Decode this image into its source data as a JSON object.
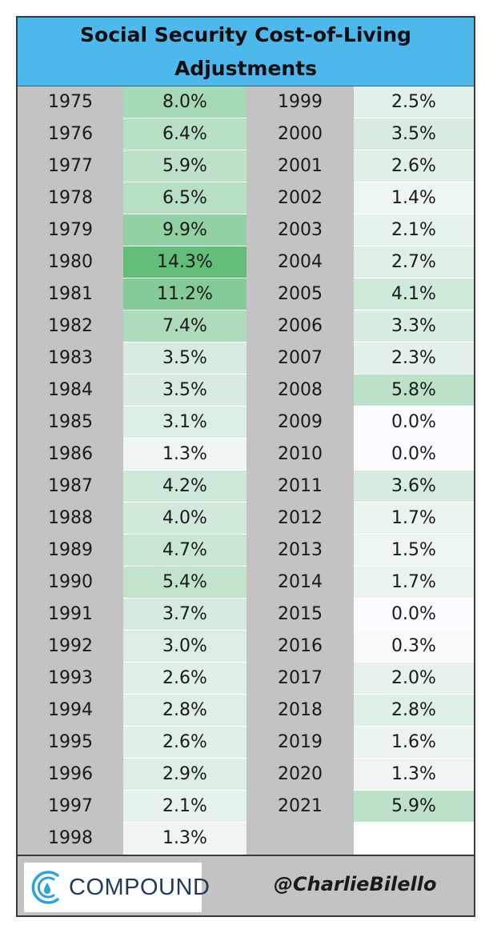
{
  "chart_data": {
    "type": "table",
    "title": "Social Security Cost-of-Living Adjustments",
    "rows": [
      {
        "year": "1975",
        "value": "8.0%",
        "pct": 8.0
      },
      {
        "year": "1976",
        "value": "6.4%",
        "pct": 6.4
      },
      {
        "year": "1977",
        "value": "5.9%",
        "pct": 5.9
      },
      {
        "year": "1978",
        "value": "6.5%",
        "pct": 6.5
      },
      {
        "year": "1979",
        "value": "9.9%",
        "pct": 9.9
      },
      {
        "year": "1980",
        "value": "14.3%",
        "pct": 14.3
      },
      {
        "year": "1981",
        "value": "11.2%",
        "pct": 11.2
      },
      {
        "year": "1982",
        "value": "7.4%",
        "pct": 7.4
      },
      {
        "year": "1983",
        "value": "3.5%",
        "pct": 3.5
      },
      {
        "year": "1984",
        "value": "3.5%",
        "pct": 3.5
      },
      {
        "year": "1985",
        "value": "3.1%",
        "pct": 3.1
      },
      {
        "year": "1986",
        "value": "1.3%",
        "pct": 1.3
      },
      {
        "year": "1987",
        "value": "4.2%",
        "pct": 4.2
      },
      {
        "year": "1988",
        "value": "4.0%",
        "pct": 4.0
      },
      {
        "year": "1989",
        "value": "4.7%",
        "pct": 4.7
      },
      {
        "year": "1990",
        "value": "5.4%",
        "pct": 5.4
      },
      {
        "year": "1991",
        "value": "3.7%",
        "pct": 3.7
      },
      {
        "year": "1992",
        "value": "3.0%",
        "pct": 3.0
      },
      {
        "year": "1993",
        "value": "2.6%",
        "pct": 2.6
      },
      {
        "year": "1994",
        "value": "2.8%",
        "pct": 2.8
      },
      {
        "year": "1995",
        "value": "2.6%",
        "pct": 2.6
      },
      {
        "year": "1996",
        "value": "2.9%",
        "pct": 2.9
      },
      {
        "year": "1997",
        "value": "2.1%",
        "pct": 2.1
      },
      {
        "year": "1998",
        "value": "1.3%",
        "pct": 1.3
      },
      {
        "year": "1999",
        "value": "2.5%",
        "pct": 2.5
      },
      {
        "year": "2000",
        "value": "3.5%",
        "pct": 3.5
      },
      {
        "year": "2001",
        "value": "2.6%",
        "pct": 2.6
      },
      {
        "year": "2002",
        "value": "1.4%",
        "pct": 1.4
      },
      {
        "year": "2003",
        "value": "2.1%",
        "pct": 2.1
      },
      {
        "year": "2004",
        "value": "2.7%",
        "pct": 2.7
      },
      {
        "year": "2005",
        "value": "4.1%",
        "pct": 4.1
      },
      {
        "year": "2006",
        "value": "3.3%",
        "pct": 3.3
      },
      {
        "year": "2007",
        "value": "2.3%",
        "pct": 2.3
      },
      {
        "year": "2008",
        "value": "5.8%",
        "pct": 5.8
      },
      {
        "year": "2009",
        "value": "0.0%",
        "pct": 0.0
      },
      {
        "year": "2010",
        "value": "0.0%",
        "pct": 0.0
      },
      {
        "year": "2011",
        "value": "3.6%",
        "pct": 3.6
      },
      {
        "year": "2012",
        "value": "1.7%",
        "pct": 1.7
      },
      {
        "year": "2013",
        "value": "1.5%",
        "pct": 1.5
      },
      {
        "year": "2014",
        "value": "1.7%",
        "pct": 1.7
      },
      {
        "year": "2015",
        "value": "0.0%",
        "pct": 0.0
      },
      {
        "year": "2016",
        "value": "0.3%",
        "pct": 0.3
      },
      {
        "year": "2017",
        "value": "2.0%",
        "pct": 2.0
      },
      {
        "year": "2018",
        "value": "2.8%",
        "pct": 2.8
      },
      {
        "year": "2019",
        "value": "1.6%",
        "pct": 1.6
      },
      {
        "year": "2020",
        "value": "1.3%",
        "pct": 1.3
      },
      {
        "year": "2021",
        "value": "5.9%",
        "pct": 5.9
      }
    ],
    "heat_colors": {
      "low": "#fcfbff",
      "high": "#63be7b"
    },
    "header_color": "#4db8ec",
    "rows_per_column": 24
  },
  "header": {
    "title_line1": "Social Security Cost-of-Living",
    "title_line2": "Adjustments"
  },
  "footer": {
    "logo_icon": "compound-logo-icon",
    "logo_text": "COMPOUND",
    "handle": "@CharlieBilello"
  }
}
